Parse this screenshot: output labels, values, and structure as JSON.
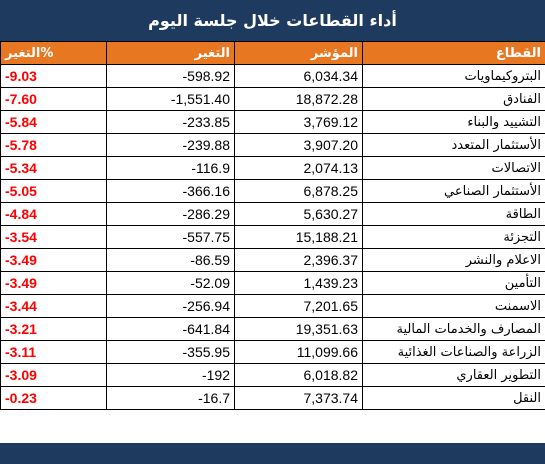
{
  "title": "أداء القطاعات خلال جلسة اليوم",
  "headers": {
    "pct": "التغير%",
    "change": "التغير",
    "index": "المؤشر",
    "sector": "القطاع"
  },
  "rows": [
    {
      "pct": "-9.03",
      "change": "-598.92",
      "index": "6,034.34",
      "sector": "البتروكيماويات"
    },
    {
      "pct": "-7.60",
      "change": "-1,551.40",
      "index": "18,872.28",
      "sector": "الفنادق"
    },
    {
      "pct": "-5.84",
      "change": "-233.85",
      "index": "3,769.12",
      "sector": "التشييد والبناء"
    },
    {
      "pct": "-5.78",
      "change": "-239.88",
      "index": "3,907.20",
      "sector": "الأستثمار المتعدد"
    },
    {
      "pct": "-5.34",
      "change": "-116.9",
      "index": "2,074.13",
      "sector": "الاتصالات"
    },
    {
      "pct": "-5.05",
      "change": "-366.16",
      "index": "6,878.25",
      "sector": "الأستثمار الصناعي"
    },
    {
      "pct": "-4.84",
      "change": "-286.29",
      "index": "5,630.27",
      "sector": "الطاقة"
    },
    {
      "pct": "-3.54",
      "change": "-557.75",
      "index": "15,188.21",
      "sector": "التجزئة"
    },
    {
      "pct": "-3.49",
      "change": "-86.59",
      "index": "2,396.37",
      "sector": "الاعلام والنشر"
    },
    {
      "pct": "-3.49",
      "change": "-52.09",
      "index": "1,439.23",
      "sector": "التأمين"
    },
    {
      "pct": "-3.44",
      "change": "-256.94",
      "index": "7,201.65",
      "sector": "الاسمنت"
    },
    {
      "pct": "-3.21",
      "change": "-641.84",
      "index": "19,351.63",
      "sector": "المصارف والخدمات المالية"
    },
    {
      "pct": "-3.11",
      "change": "-355.95",
      "index": "11,099.66",
      "sector": "الزراعة والصناعات الغذائية"
    },
    {
      "pct": "-3.09",
      "change": "-192",
      "index": "6,018.82",
      "sector": "التطوير العقاري"
    },
    {
      "pct": "-0.23",
      "change": "-16.7",
      "index": "7,373.74",
      "sector": "النقل"
    }
  ],
  "colors": {
    "title_bg": "#1f3a5f",
    "header_bg": "#e87722",
    "negative": "#ff0000"
  }
}
